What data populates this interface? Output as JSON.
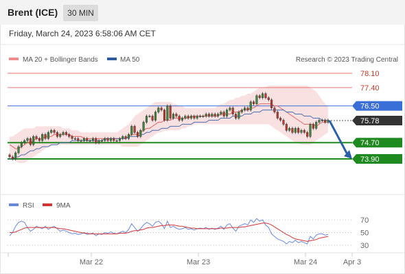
{
  "header": {
    "symbol": "Brent (ICE)",
    "timeframe": "30 MIN"
  },
  "datetime": "Friday, March 24, 2023 6:58:06 AM CET",
  "copyright": "Research © 2023 Trading Central",
  "colors": {
    "price": "#333333",
    "up_candle": "#3a8a3a",
    "down_candle": "#c0392b",
    "bollinger_band": "#f6c9c9",
    "ma20": "#e06666",
    "ma50": "#4a6fb5",
    "resistance": "#e57373",
    "pivot": "#3b6fd8",
    "support": "#1f8a1f",
    "current_price": "#333333",
    "forecast_arrow": "#2b5fa8",
    "rsi": "#6688dd",
    "rsi_ma": "#d33333"
  },
  "chart_data": [
    {
      "type": "line",
      "subtype": "candlestick",
      "legend": [
        {
          "name": "MA 20 + Bollinger Bands",
          "color": "#f08c8c"
        },
        {
          "name": "MA 50",
          "color": "#2d5a9e"
        }
      ],
      "x_ticks": [
        "Mar 22",
        "Mar 23",
        "Mar 24",
        "Apr 3"
      ],
      "y_range": [
        73.5,
        78.4
      ],
      "levels": [
        {
          "value": 78.1,
          "label": "78.10",
          "kind": "resistance"
        },
        {
          "value": 77.4,
          "label": "77.40",
          "kind": "resistance"
        },
        {
          "value": 76.5,
          "label": "76.50",
          "kind": "pivot"
        },
        {
          "value": 75.78,
          "label": "75.78",
          "kind": "current"
        },
        {
          "value": 74.7,
          "label": "74.70",
          "kind": "support"
        },
        {
          "value": 73.9,
          "label": "73.90",
          "kind": "support"
        }
      ],
      "close": [
        74.0,
        73.9,
        74.2,
        74.5,
        74.7,
        74.8,
        74.9,
        74.6,
        75.0,
        74.9,
        74.8,
        75.1,
        74.9,
        75.2,
        75.3,
        75.2,
        75.0,
        75.1,
        75.2,
        75.1,
        75.0,
        74.9,
        74.9,
        74.8,
        74.8,
        74.9,
        74.8,
        74.8,
        74.9,
        74.7,
        74.8,
        74.8,
        74.9,
        74.8,
        74.9,
        74.8,
        74.8,
        74.9,
        75.0,
        74.9,
        75.1,
        75.5,
        75.2,
        75.0,
        75.3,
        75.7,
        76.0,
        76.0,
        75.8,
        76.2,
        76.4,
        76.3,
        75.8,
        76.5,
        75.9,
        76.1,
        76.0,
        75.8,
        75.9,
        76.0,
        75.9,
        76.0,
        75.9,
        76.0,
        76.0,
        76.0,
        76.1,
        76.0,
        76.1,
        76.0,
        76.1,
        76.2,
        76.0,
        76.3,
        76.4,
        76.1,
        75.9,
        76.2,
        76.3,
        76.4,
        76.3,
        76.7,
        76.6,
        77.0,
        76.9,
        77.1,
        76.9,
        76.8,
        76.4,
        76.2,
        75.9,
        75.8,
        75.6,
        75.3,
        75.4,
        75.2,
        75.4,
        75.2,
        75.3,
        75.2,
        75.0,
        75.6,
        75.4,
        75.7,
        75.8,
        75.8,
        75.7,
        75.8
      ],
      "ma20": [
        74.6,
        74.5,
        74.4,
        74.4,
        74.5,
        74.6,
        74.7,
        74.7,
        74.8,
        74.9,
        74.9,
        74.9,
        75.0,
        75.0,
        75.0,
        75.1,
        75.1,
        75.1,
        75.1,
        75.1,
        75.1,
        75.0,
        75.0,
        75.0,
        75.0,
        74.9,
        74.9,
        74.9,
        74.9,
        74.9,
        74.9,
        74.9,
        74.9,
        74.9,
        74.9,
        74.9,
        74.9,
        74.9,
        74.9,
        74.9,
        75.0,
        75.1,
        75.1,
        75.1,
        75.2,
        75.3,
        75.4,
        75.4,
        75.5,
        75.6,
        75.7,
        75.7,
        75.8,
        75.8,
        75.8,
        75.9,
        75.9,
        75.9,
        75.9,
        75.9,
        75.9,
        76.0,
        76.0,
        76.0,
        76.0,
        76.0,
        76.0,
        76.0,
        76.0,
        76.0,
        76.0,
        76.1,
        76.1,
        76.1,
        76.1,
        76.2,
        76.2,
        76.2,
        76.3,
        76.3,
        76.3,
        76.4,
        76.4,
        76.5,
        76.6,
        76.6,
        76.6,
        76.6,
        76.6,
        76.5,
        76.5,
        76.4,
        76.3,
        76.2,
        76.1,
        76.0,
        75.9,
        75.8,
        75.7,
        75.6,
        75.6,
        75.6,
        75.6,
        75.5,
        75.6,
        75.7,
        75.7,
        75.7
      ],
      "bb_upper": [
        75.0,
        75.0,
        75.1,
        75.2,
        75.3,
        75.4,
        75.4,
        75.4,
        75.4,
        75.5,
        75.5,
        75.5,
        75.5,
        75.5,
        75.5,
        75.5,
        75.5,
        75.5,
        75.4,
        75.4,
        75.4,
        75.3,
        75.3,
        75.3,
        75.2,
        75.2,
        75.2,
        75.2,
        75.2,
        75.2,
        75.2,
        75.2,
        75.2,
        75.2,
        75.2,
        75.2,
        75.2,
        75.3,
        75.4,
        75.5,
        75.6,
        75.8,
        76.0,
        76.1,
        76.2,
        76.3,
        76.4,
        76.5,
        76.6,
        76.7,
        76.7,
        76.7,
        76.7,
        76.7,
        76.7,
        76.6,
        76.6,
        76.5,
        76.5,
        76.4,
        76.4,
        76.4,
        76.4,
        76.4,
        76.4,
        76.4,
        76.4,
        76.4,
        76.4,
        76.4,
        76.5,
        76.6,
        76.6,
        76.7,
        76.8,
        76.8,
        76.9,
        76.9,
        77.0,
        77.0,
        77.1,
        77.1,
        77.2,
        77.3,
        77.4,
        77.4,
        77.4,
        77.5,
        77.5,
        77.5,
        77.5,
        77.5,
        77.5,
        77.5,
        77.5,
        77.5,
        77.5,
        77.5,
        77.5,
        77.5,
        77.5,
        77.4,
        77.3,
        77.2,
        77.0,
        76.8,
        76.6,
        76.5
      ],
      "bb_lower": [
        74.0,
        73.9,
        73.8,
        73.7,
        73.7,
        73.7,
        73.8,
        73.9,
        74.0,
        74.1,
        74.2,
        74.3,
        74.4,
        74.5,
        74.5,
        74.6,
        74.6,
        74.6,
        74.6,
        74.6,
        74.6,
        74.6,
        74.6,
        74.6,
        74.6,
        74.6,
        74.6,
        74.6,
        74.6,
        74.6,
        74.6,
        74.6,
        74.6,
        74.6,
        74.6,
        74.6,
        74.6,
        74.6,
        74.5,
        74.5,
        74.5,
        74.5,
        74.5,
        74.5,
        74.6,
        74.7,
        74.8,
        74.9,
        75.0,
        75.1,
        75.2,
        75.2,
        75.3,
        75.3,
        75.3,
        75.3,
        75.3,
        75.3,
        75.4,
        75.4,
        75.5,
        75.5,
        75.6,
        75.6,
        75.6,
        75.6,
        75.6,
        75.6,
        75.6,
        75.6,
        75.6,
        75.6,
        75.6,
        75.6,
        75.6,
        75.6,
        75.6,
        75.6,
        75.6,
        75.6,
        75.6,
        75.6,
        75.6,
        75.6,
        75.6,
        75.6,
        75.6,
        75.6,
        75.5,
        75.4,
        75.3,
        75.2,
        75.1,
        75.0,
        74.9,
        74.8,
        74.7,
        74.7,
        74.6,
        74.6,
        74.6,
        74.6,
        74.7,
        74.8,
        74.9,
        75.0,
        75.1,
        75.2
      ],
      "ma50": [
        73.9,
        73.9,
        74.0,
        74.0,
        74.1,
        74.1,
        74.2,
        74.3,
        74.3,
        74.4,
        74.4,
        74.5,
        74.5,
        74.5,
        74.6,
        74.6,
        74.6,
        74.7,
        74.7,
        74.7,
        74.7,
        74.8,
        74.8,
        74.8,
        74.8,
        74.8,
        74.8,
        74.8,
        74.8,
        74.8,
        74.8,
        74.8,
        74.9,
        74.9,
        74.9,
        74.9,
        74.9,
        74.9,
        74.9,
        74.9,
        75.0,
        75.0,
        75.0,
        75.0,
        75.1,
        75.1,
        75.2,
        75.2,
        75.3,
        75.3,
        75.3,
        75.4,
        75.4,
        75.4,
        75.5,
        75.5,
        75.5,
        75.5,
        75.6,
        75.6,
        75.6,
        75.6,
        75.7,
        75.7,
        75.7,
        75.7,
        75.7,
        75.8,
        75.8,
        75.8,
        75.8,
        75.9,
        75.9,
        75.9,
        75.9,
        76.0,
        76.0,
        76.0,
        76.0,
        76.1,
        76.1,
        76.1,
        76.2,
        76.2,
        76.2,
        76.3,
        76.3,
        76.3,
        76.3,
        76.3,
        76.3,
        76.3,
        76.3,
        76.2,
        76.2,
        76.2,
        76.1,
        76.1,
        76.1,
        76.0,
        76.0,
        76.0,
        75.9,
        75.9,
        75.9,
        75.8,
        75.8,
        75.8
      ],
      "forecast": {
        "from": 75.78,
        "to": 73.9
      }
    },
    {
      "type": "line",
      "legend": [
        {
          "name": "RSI",
          "color": "#6688dd"
        },
        {
          "name": "9MA",
          "color": "#d33333"
        }
      ],
      "levels": [
        70,
        50,
        30
      ],
      "y_range": [
        20,
        80
      ],
      "rsi": [
        45,
        50,
        60,
        66,
        68,
        66,
        58,
        52,
        55,
        60,
        58,
        56,
        60,
        55,
        58,
        60,
        56,
        52,
        54,
        52,
        50,
        48,
        49,
        47,
        48,
        50,
        47,
        48,
        49,
        45,
        48,
        47,
        50,
        49,
        51,
        49,
        48,
        50,
        52,
        50,
        55,
        64,
        58,
        52,
        56,
        62,
        66,
        64,
        60,
        66,
        68,
        64,
        56,
        68,
        58,
        60,
        57,
        55,
        56,
        58,
        55,
        56,
        54,
        56,
        57,
        56,
        58,
        55,
        57,
        55,
        57,
        60,
        55,
        62,
        64,
        57,
        52,
        60,
        62,
        64,
        62,
        70,
        66,
        72,
        68,
        70,
        62,
        58,
        48,
        44,
        40,
        38,
        36,
        32,
        36,
        34,
        38,
        34,
        36,
        34,
        32,
        44,
        40,
        46,
        48,
        48,
        46,
        47
      ],
      "rsi_ma": [
        50,
        50,
        51,
        53,
        55,
        57,
        58,
        58,
        58,
        58,
        58,
        58,
        58,
        58,
        58,
        58,
        57,
        56,
        56,
        55,
        54,
        53,
        52,
        51,
        50,
        49,
        49,
        48,
        48,
        48,
        48,
        48,
        48,
        48,
        48,
        48,
        48,
        49,
        49,
        49,
        50,
        52,
        53,
        53,
        54,
        55,
        57,
        58,
        58,
        59,
        60,
        61,
        61,
        62,
        62,
        62,
        61,
        60,
        60,
        59,
        58,
        57,
        57,
        56,
        56,
        56,
        56,
        56,
        56,
        56,
        56,
        57,
        57,
        57,
        58,
        58,
        58,
        58,
        59,
        59,
        60,
        61,
        62,
        63,
        64,
        65,
        65,
        64,
        62,
        59,
        56,
        53,
        50,
        47,
        45,
        42,
        40,
        39,
        38,
        37,
        36,
        37,
        38,
        39,
        41,
        42,
        43,
        44
      ]
    }
  ]
}
